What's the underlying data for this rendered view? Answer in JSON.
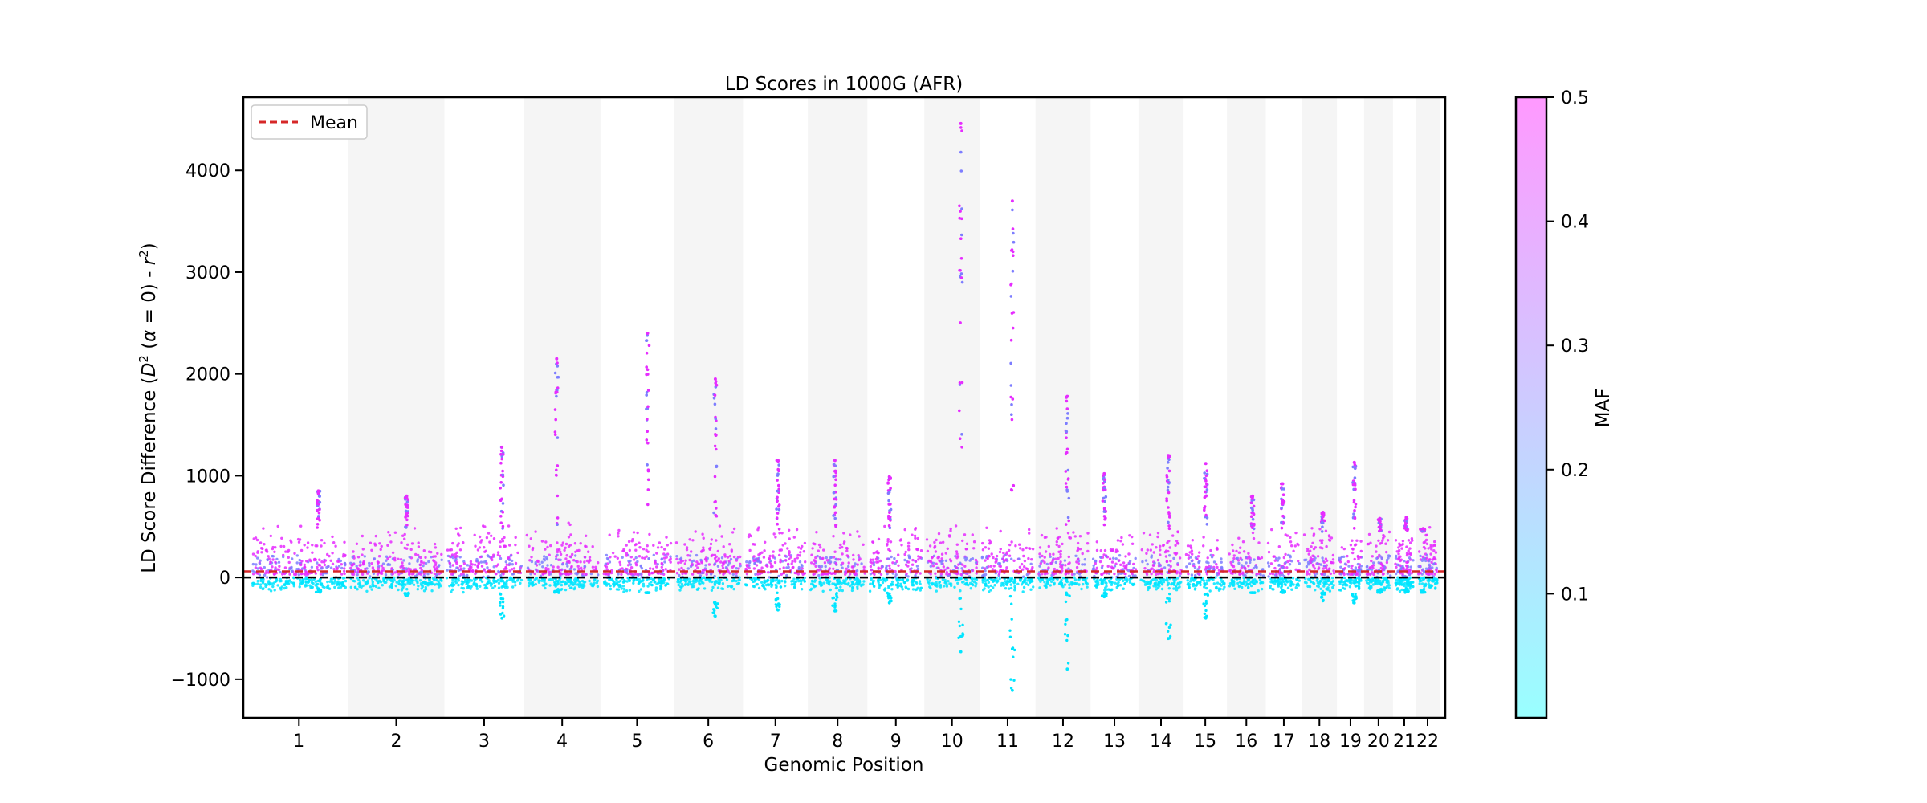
{
  "chart_data": {
    "type": "scatter",
    "title": "LD Scores in 1000G (AFR)",
    "xlabel": "Genomic Position",
    "ylabel_parts": [
      "LD Score Difference (",
      "D",
      "2",
      " (",
      "α",
      " = 0) - ",
      "r",
      "2",
      ")"
    ],
    "ylim": [
      -1380,
      4720
    ],
    "yticks": [
      -1000,
      0,
      1000,
      2000,
      3000,
      4000
    ],
    "ytick_labels": [
      "−1000",
      "0",
      "1000",
      "2000",
      "3000",
      "4000"
    ],
    "reference_lines": {
      "zero": 0,
      "mean": 60
    },
    "legend": {
      "placement": "top-left",
      "entries": [
        {
          "label": "Mean",
          "color": "#d62728",
          "style": "dashed"
        }
      ]
    },
    "chromosomes": [
      "1",
      "2",
      "3",
      "4",
      "5",
      "6",
      "7",
      "8",
      "9",
      "10",
      "11",
      "12",
      "13",
      "14",
      "15",
      "16",
      "17",
      "18",
      "19",
      "20",
      "21",
      "22"
    ],
    "chromosome_lengths_mb": [
      248,
      242,
      198,
      190,
      181,
      171,
      159,
      145,
      138,
      134,
      135,
      133,
      114,
      107,
      102,
      90,
      83,
      80,
      59,
      64,
      47,
      51
    ],
    "chromosome_shading": "alternating",
    "peaks": [
      {
        "chromosome": "1",
        "max": 850,
        "min": -110
      },
      {
        "chromosome": "2",
        "max": 800,
        "min": -180
      },
      {
        "chromosome": "3",
        "max": 1280,
        "min": -400
      },
      {
        "chromosome": "4",
        "max": 2150,
        "min": -130
      },
      {
        "chromosome": "5",
        "max": 2400,
        "min": -150
      },
      {
        "chromosome": "6",
        "max": 1950,
        "min": -380
      },
      {
        "chromosome": "7",
        "max": 1150,
        "min": -320
      },
      {
        "chromosome": "8",
        "max": 1150,
        "min": -330
      },
      {
        "chromosome": "9",
        "max": 990,
        "min": -250
      },
      {
        "chromosome": "10",
        "max": 4460,
        "min": -730
      },
      {
        "chromosome": "11",
        "max": 3700,
        "min": -1110
      },
      {
        "chromosome": "12",
        "max": 1780,
        "min": -900
      },
      {
        "chromosome": "13",
        "max": 1020,
        "min": -190
      },
      {
        "chromosome": "14",
        "max": 1190,
        "min": -600
      },
      {
        "chromosome": "15",
        "max": 1120,
        "min": -400
      },
      {
        "chromosome": "16",
        "max": 800,
        "min": -150
      },
      {
        "chromosome": "17",
        "max": 920,
        "min": -130
      },
      {
        "chromosome": "18",
        "max": 640,
        "min": -230
      },
      {
        "chromosome": "19",
        "max": 1130,
        "min": -250
      },
      {
        "chromosome": "20",
        "max": 580,
        "min": -120
      },
      {
        "chromosome": "21",
        "max": 590,
        "min": -110
      },
      {
        "chromosome": "22",
        "max": 480,
        "min": -130
      }
    ],
    "colorbar": {
      "label": "MAF",
      "range": [
        0.0,
        0.5
      ],
      "ticks": [
        0.1,
        0.2,
        0.3,
        0.4,
        0.5
      ],
      "tick_labels": [
        "0.1",
        "0.2",
        "0.3",
        "0.4",
        "0.5"
      ],
      "color_low": "#99ffff",
      "color_high": "#ff99ff"
    },
    "point_colors": {
      "low_maf": "#00e5ff",
      "high_maf": "#e62cff",
      "mid_maf": "#7d7dff"
    }
  }
}
